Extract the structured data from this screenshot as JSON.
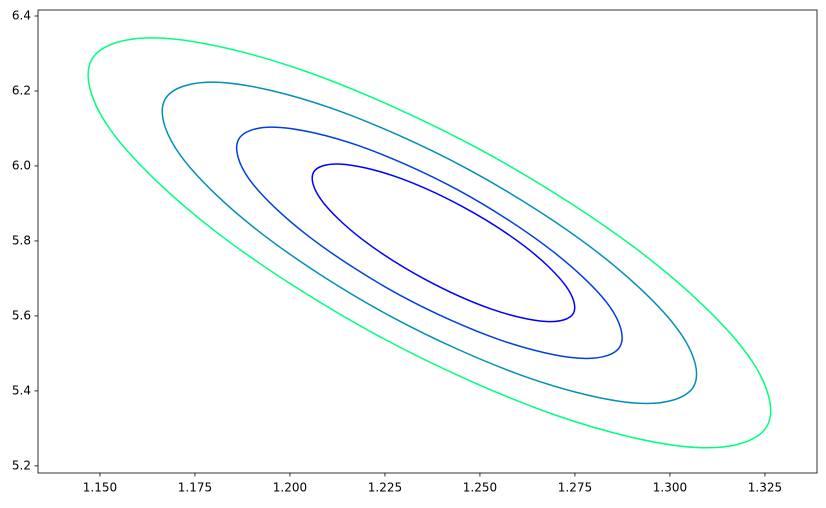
{
  "chart_data": {
    "type": "contour",
    "xlim": [
      1.1337,
      1.3387
    ],
    "ylim": [
      5.181,
      6.416
    ],
    "xticks": [
      {
        "value": 1.15,
        "label": "1.150"
      },
      1.175,
      {
        "value": 1.2,
        "label": "1.200"
      },
      1.225,
      {
        "value": 1.25,
        "label": "1.250"
      },
      1.275,
      {
        "value": 1.3,
        "label": "1.300"
      },
      1.325
    ],
    "yticks": [
      5.2,
      5.4,
      5.6,
      5.8,
      {
        "value": 6.0,
        "label": "6.0"
      },
      6.2,
      6.4
    ],
    "series": [
      {
        "color": "#0000ff",
        "x": [
          1.2746,
          1.2726,
          1.262,
          1.2455,
          1.2277,
          1.2133,
          1.2062,
          1.2082,
          1.2188,
          1.2353,
          1.2531,
          1.2675
        ],
        "y": [
          5.607,
          5.68,
          5.784,
          5.891,
          5.972,
          6.005,
          5.983,
          5.91,
          5.806,
          5.699,
          5.618,
          5.585
        ]
      },
      {
        "color": "#0040df",
        "x": [
          1.2869,
          1.284,
          1.2683,
          1.2442,
          1.2181,
          1.1969,
          1.1865,
          1.1894,
          1.2051,
          1.2292,
          1.2553,
          1.2765
        ],
        "y": [
          5.519,
          5.627,
          5.779,
          5.936,
          6.054,
          6.103,
          6.071,
          5.963,
          5.811,
          5.654,
          5.536,
          5.487
        ]
      },
      {
        "color": "#0090b7",
        "x": [
          1.3063,
          1.3022,
          1.2805,
          1.2471,
          1.2109,
          1.1816,
          1.1671,
          1.1712,
          1.1929,
          1.2263,
          1.2625,
          1.2918
        ],
        "y": [
          5.413,
          5.562,
          5.773,
          5.99,
          6.154,
          6.223,
          6.177,
          6.028,
          5.817,
          5.6,
          5.436,
          5.367
        ]
      },
      {
        "color": "#00ff80",
        "x": [
          1.3256,
          1.3204,
          1.2927,
          1.25,
          1.2037,
          1.1663,
          1.1478,
          1.153,
          1.1807,
          1.2234,
          1.2697,
          1.3071
        ],
        "y": [
          5.307,
          5.497,
          5.767,
          6.044,
          6.254,
          6.341,
          6.283,
          6.093,
          5.823,
          5.546,
          5.336,
          5.249
        ]
      }
    ]
  }
}
